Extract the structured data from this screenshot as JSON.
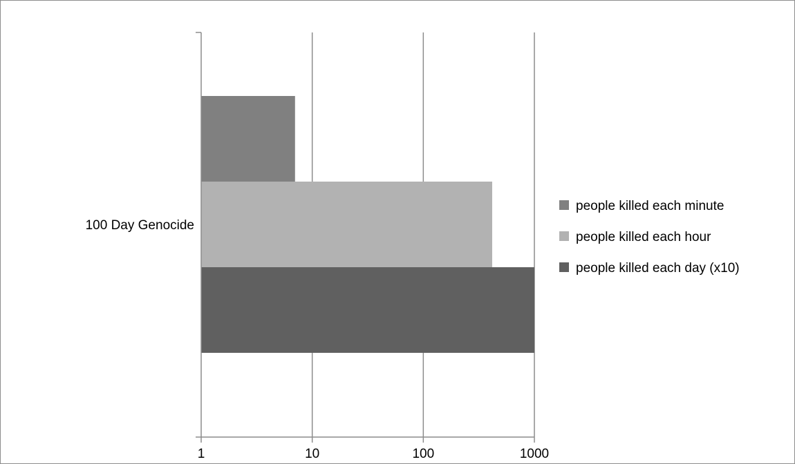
{
  "chart_data": {
    "type": "bar",
    "orientation": "horizontal",
    "x_scale": "log",
    "xlim": [
      1,
      1000
    ],
    "x_ticks": [
      "1",
      "10",
      "100",
      "1000"
    ],
    "grid": true,
    "legend_position": "right",
    "categories": [
      "100 Day Genocide"
    ],
    "series": [
      {
        "name": "people killed each minute",
        "values": [
          7
        ],
        "color": "#808080"
      },
      {
        "name": "people killed each hour",
        "values": [
          417
        ],
        "color": "#b2b2b2"
      },
      {
        "name": "people killed each day (x10)",
        "values": [
          1000
        ],
        "color": "#606060"
      }
    ]
  }
}
